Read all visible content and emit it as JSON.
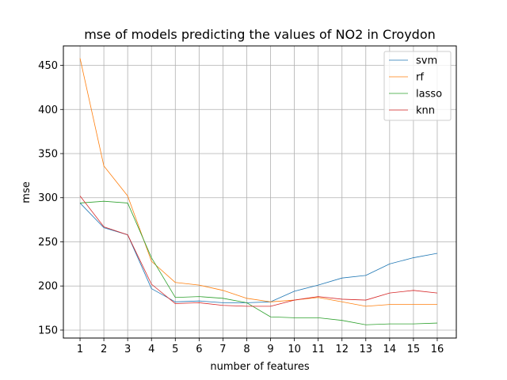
{
  "chart_data": {
    "type": "line",
    "title": "mse of models predicting the values of NO2 in Croydon",
    "xlabel": "number of features",
    "ylabel": "mse",
    "x": [
      1,
      2,
      3,
      4,
      5,
      6,
      7,
      8,
      9,
      10,
      11,
      12,
      13,
      14,
      15,
      16
    ],
    "xlim": [
      0.3,
      16.8
    ],
    "ylim": [
      141,
      472
    ],
    "yticks": [
      150,
      200,
      250,
      300,
      350,
      400,
      450
    ],
    "grid": true,
    "legend_position": "top-right",
    "series": [
      {
        "name": "svm",
        "color": "#1f77b4",
        "values": [
          294,
          266,
          258,
          197,
          182,
          183,
          181,
          181,
          182,
          194,
          201,
          209,
          212,
          225,
          232,
          237
        ]
      },
      {
        "name": "rf",
        "color": "#ff7f0e",
        "values": [
          458,
          336,
          302,
          228,
          204,
          201,
          195,
          186,
          182,
          184,
          187,
          182,
          177,
          179,
          179,
          179
        ]
      },
      {
        "name": "lasso",
        "color": "#2ca02c",
        "values": [
          294,
          296,
          294,
          232,
          187,
          188,
          186,
          181,
          165,
          164,
          164,
          161,
          156,
          157,
          157,
          158
        ]
      },
      {
        "name": "knn",
        "color": "#d62728",
        "values": [
          302,
          267,
          258,
          202,
          180,
          181,
          178,
          177,
          177,
          184,
          188,
          185,
          184,
          192,
          195,
          192
        ]
      }
    ]
  }
}
